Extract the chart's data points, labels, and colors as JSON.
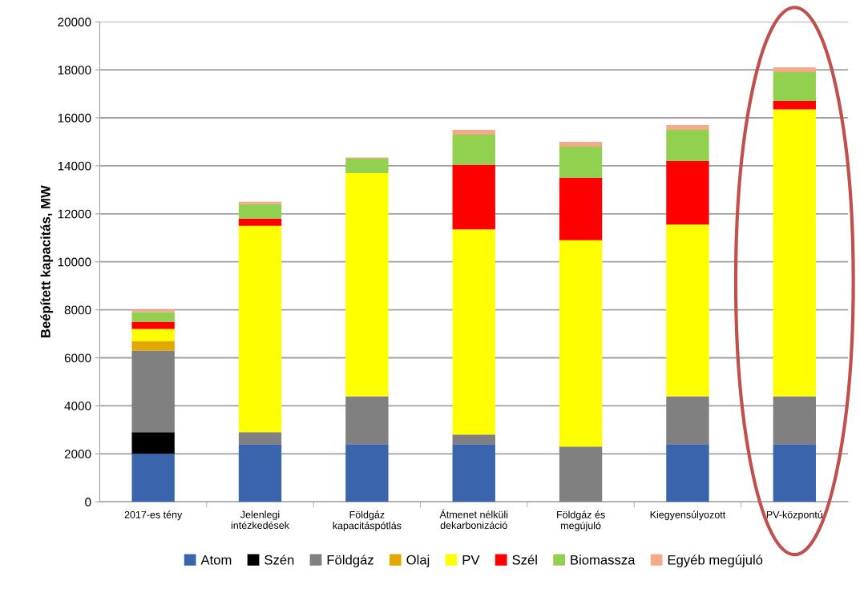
{
  "chart_data": {
    "type": "bar",
    "stacked": true,
    "ylabel": "Beépített kapacitás, MW",
    "categories": [
      "2017-es tény",
      "Jelenlegi\nintézkedések",
      "Földgáz\nkapacitáspótlás",
      "Átmenet nélküli\ndekarbonizáció",
      "Földgáz és\nmegújuló",
      "Kiegyensúlyozott",
      "PV-központú"
    ],
    "series": [
      {
        "name": "Atom",
        "color": "#3a64ac",
        "values": [
          2000,
          2400,
          2400,
          2400,
          0,
          2400,
          2400
        ]
      },
      {
        "name": "Szén",
        "color": "#000000",
        "values": [
          900,
          0,
          0,
          0,
          0,
          0,
          0
        ]
      },
      {
        "name": "Földgáz",
        "color": "#808080",
        "values": [
          3400,
          500,
          2000,
          400,
          2300,
          2000,
          2000
        ]
      },
      {
        "name": "Olaj",
        "color": "#e0a800",
        "values": [
          400,
          0,
          0,
          0,
          0,
          0,
          0
        ]
      },
      {
        "name": "PV",
        "color": "#ffff00",
        "values": [
          500,
          8600,
          9300,
          8550,
          8600,
          7150,
          11950
        ]
      },
      {
        "name": "Szél",
        "color": "#ff0000",
        "values": [
          300,
          300,
          0,
          2700,
          2600,
          2650,
          350
        ]
      },
      {
        "name": "Biomassza",
        "color": "#92d050",
        "values": [
          400,
          600,
          600,
          1250,
          1300,
          1300,
          1200
        ]
      },
      {
        "name": "Egyéb megújuló",
        "color": "#f4a98a",
        "values": [
          100,
          100,
          50,
          200,
          200,
          200,
          200
        ]
      }
    ],
    "ylim": [
      0,
      20000
    ],
    "yticks": [
      0,
      2000,
      4000,
      6000,
      8000,
      10000,
      12000,
      14000,
      16000,
      18000,
      20000
    ],
    "grid": "y",
    "legend": "bottom"
  }
}
